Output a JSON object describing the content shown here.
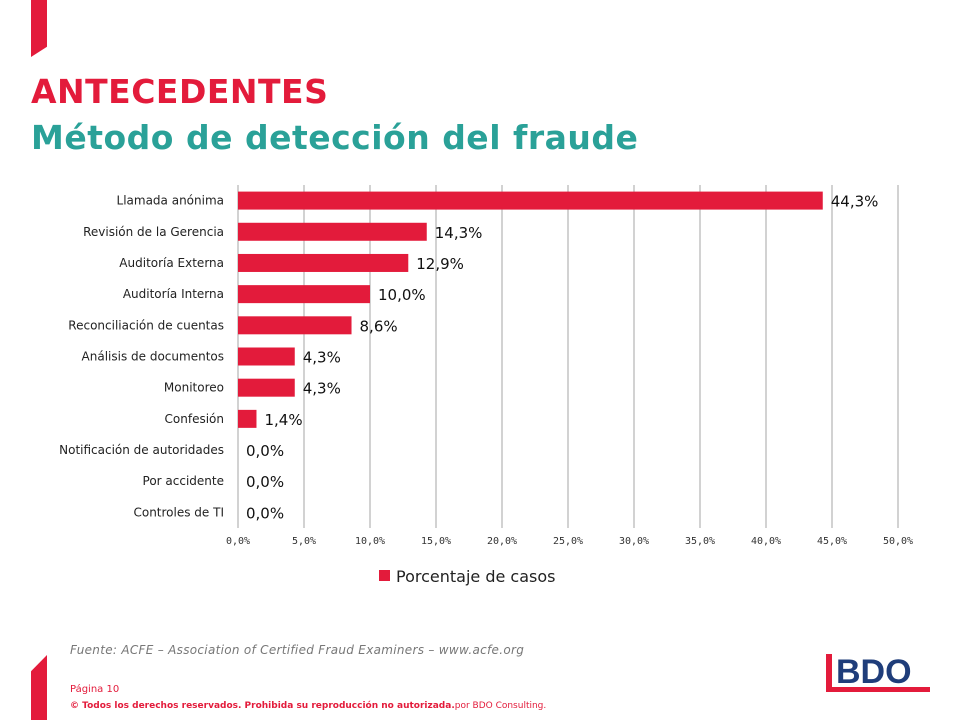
{
  "header": {
    "title": "ANTECEDENTES",
    "subtitle": "Método de detección del fraude"
  },
  "chart_data": {
    "type": "bar",
    "orientation": "horizontal",
    "categories": [
      "Llamada anónima",
      "Revisión de la Gerencia",
      "Auditoría Externa",
      "Auditoría Interna",
      "Reconciliación de cuentas",
      "Análisis de documentos",
      "Monitoreo",
      "Confesión",
      "Notificación de autoridades",
      "Por accidente",
      "Controles de TI"
    ],
    "series": [
      {
        "name": "Porcentaje de casos",
        "values": [
          44.3,
          14.3,
          12.9,
          10.0,
          8.6,
          4.3,
          4.3,
          1.4,
          0.0,
          0.0,
          0.0
        ],
        "color": "#e31b3b"
      }
    ],
    "data_labels": [
      "44,3%",
      "14,3%",
      "12,9%",
      "10,0%",
      "8,6%",
      "4,3%",
      "4,3%",
      "1,4%",
      "0,0%",
      "0,0%",
      "0,0%"
    ],
    "xlim": [
      0,
      50
    ],
    "x_ticks": [
      "0,0%",
      "5,0%",
      "10,0%",
      "15,0%",
      "20,0%",
      "25,0%",
      "30,0%",
      "35,0%",
      "40,0%",
      "45,0%",
      "50,0%"
    ],
    "grid": true,
    "legend": "bottom"
  },
  "footer": {
    "source": "Fuente: ACFE – Association of Certified Fraud Examiners – www.acfe.org",
    "page": "Página 10",
    "copyright_bold": "© Todos los derechos reservados.  Prohibida su reproducción no autorizada.",
    "copyright_rest": "por BDO Consulting."
  },
  "logo": {
    "text": "BDO",
    "color": "#e31b3b",
    "text_color": "#1f3d7a"
  }
}
